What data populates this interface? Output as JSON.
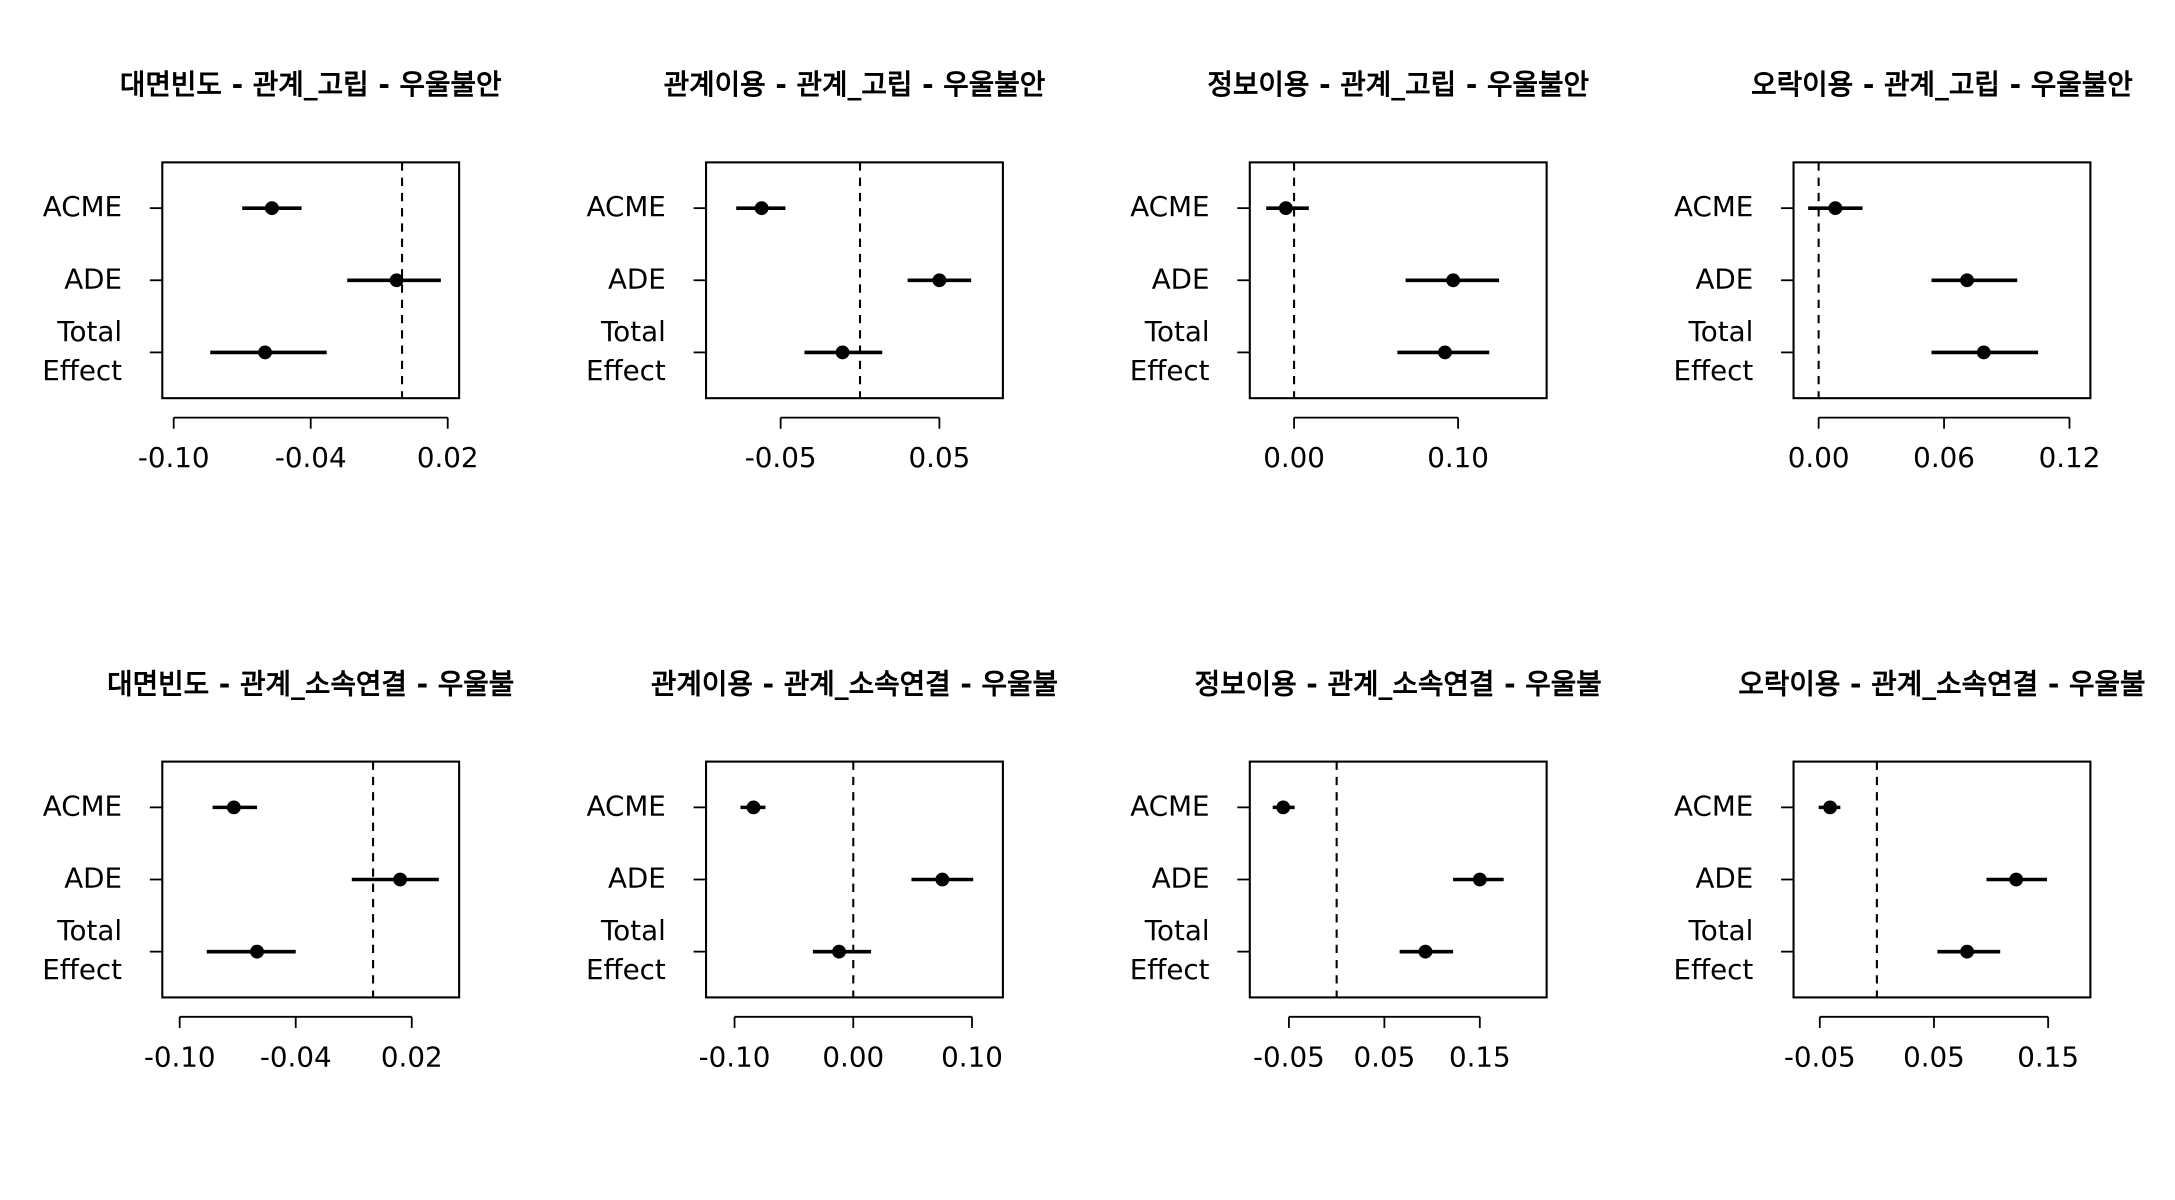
{
  "chart_data": [
    {
      "type": "interval",
      "title": "대면빈도 - 관계_고립 - 우울불안",
      "categories": [
        "ACME",
        "ADE",
        "Total\nEffect"
      ],
      "values": [
        -0.057,
        -0.0024,
        -0.06
      ],
      "lower": [
        -0.07,
        -0.024,
        -0.084
      ],
      "upper": [
        -0.044,
        0.017,
        -0.033
      ],
      "xlim": [
        -0.105,
        0.025
      ],
      "xticks": [
        {
          "value": -0.1,
          "label": "-0.10"
        },
        -0.04,
        0.02
      ],
      "refline": 0
    },
    {
      "type": "interval",
      "title": "관계이용 - 관계_고립 - 우울불안",
      "categories": [
        "ACME",
        "ADE",
        "Total\nEffect"
      ],
      "values": [
        -0.062,
        0.05,
        -0.011
      ],
      "lower": [
        -0.078,
        0.03,
        -0.035
      ],
      "upper": [
        -0.047,
        0.07,
        0.014
      ],
      "xlim": [
        -0.097,
        0.09
      ],
      "xticks": [
        -0.05,
        0.05
      ],
      "refline": 0
    },
    {
      "type": "interval",
      "title": "정보이용 - 관계_고립 - 우울불안",
      "categories": [
        "ACME",
        "ADE",
        "Total\nEffect"
      ],
      "values": [
        -0.005,
        0.097,
        0.092
      ],
      "lower": [
        -0.017,
        0.068,
        0.063
      ],
      "upper": [
        0.009,
        0.125,
        0.119
      ],
      "xlim": [
        -0.027,
        0.154
      ],
      "xticks": [
        {
          "value": 0,
          "label": "0.00"
        },
        {
          "value": 0.1,
          "label": "0.10"
        }
      ],
      "refline": 0
    },
    {
      "type": "interval",
      "title": "오락이용 - 관계_고립 - 우울불안",
      "categories": [
        "ACME",
        "ADE",
        "Total\nEffect"
      ],
      "values": [
        0.008,
        0.071,
        0.079
      ],
      "lower": [
        -0.005,
        0.054,
        0.054
      ],
      "upper": [
        0.021,
        0.095,
        0.105
      ],
      "xlim": [
        -0.012,
        0.13
      ],
      "xticks": [
        {
          "value": 0,
          "label": "0.00"
        },
        0.06,
        0.12
      ],
      "refline": 0
    },
    {
      "type": "interval",
      "title": "대면빈도 - 관계_소속연결 - 우울불",
      "categories": [
        "ACME",
        "ADE",
        "Total\nEffect"
      ],
      "values": [
        -0.072,
        0.014,
        -0.06
      ],
      "lower": [
        -0.083,
        -0.011,
        -0.086
      ],
      "upper": [
        -0.06,
        0.034,
        -0.04
      ],
      "xlim": [
        -0.109,
        0.0445
      ],
      "xticks": [
        {
          "value": -0.1,
          "label": "-0.10"
        },
        -0.04,
        0.02
      ],
      "refline": 0
    },
    {
      "type": "interval",
      "title": "관계이용 - 관계_소속연결 - 우울불",
      "categories": [
        "ACME",
        "ADE",
        "Total\nEffect"
      ],
      "values": [
        -0.084,
        0.075,
        -0.012
      ],
      "lower": [
        -0.095,
        0.049,
        -0.034
      ],
      "upper": [
        -0.074,
        0.101,
        0.015
      ],
      "xlim": [
        -0.124,
        0.126
      ],
      "xticks": [
        {
          "value": -0.1,
          "label": "-0.10"
        },
        {
          "value": 0,
          "label": "0.00"
        },
        {
          "value": 0.1,
          "label": "0.10"
        }
      ],
      "refline": 0
    },
    {
      "type": "interval",
      "title": "정보이용 - 관계_소속연결 - 우울불",
      "categories": [
        "ACME",
        "ADE",
        "Total\nEffect"
      ],
      "values": [
        -0.056,
        0.15,
        0.093
      ],
      "lower": [
        -0.067,
        0.122,
        0.066
      ],
      "upper": [
        -0.044,
        0.175,
        0.122
      ],
      "xlim": [
        -0.091,
        0.22
      ],
      "xticks": [
        -0.05,
        0.05,
        0.15
      ],
      "refline": 0
    },
    {
      "type": "interval",
      "title": "오락이용 - 관계_소속연결 - 우울불",
      "categories": [
        "ACME",
        "ADE",
        "Total\nEffect"
      ],
      "values": [
        -0.041,
        0.122,
        0.079
      ],
      "lower": [
        -0.051,
        0.096,
        0.053
      ],
      "upper": [
        -0.032,
        0.149,
        0.108
      ],
      "xlim": [
        -0.073,
        0.187
      ],
      "xticks": [
        -0.05,
        0.05,
        0.15
      ],
      "refline": 0
    }
  ]
}
